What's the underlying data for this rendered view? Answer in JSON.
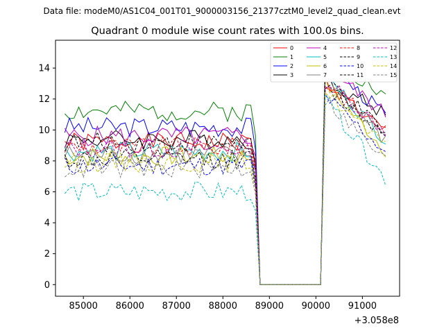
{
  "header": {
    "file_label": "Data file: modeM0/AS1C04_001T01_9000003156_21377cztM0_level2_quad_clean.evt"
  },
  "chart_data": {
    "type": "line",
    "title": "Quadrant 0 module wise count rates with 100.0s bins.",
    "xlabel": "",
    "ylabel": "",
    "x_offset_label": "+3.058e8",
    "xlim": [
      84400,
      91800
    ],
    "ylim": [
      -0.75,
      15.8
    ],
    "x_ticks": [
      85000,
      86000,
      87000,
      88000,
      89000,
      90000,
      91000
    ],
    "x_tick_labels": [
      "85000",
      "86000",
      "87000",
      "88000",
      "89000",
      "90000",
      "91000"
    ],
    "y_ticks": [
      0,
      2,
      4,
      6,
      8,
      10,
      12,
      14
    ],
    "y_tick_labels": [
      "0",
      "2",
      "4",
      "6",
      "8",
      "10",
      "12",
      "14"
    ],
    "grid": false,
    "legend_position": "top-right",
    "x_start": 84600,
    "x_step": 100,
    "n_points": 70,
    "gap_start_index": 42,
    "gap_end_index": 55,
    "series": [
      {
        "name": "0",
        "color": "#ff0000",
        "dash": "solid",
        "pre_mean": 9.2,
        "post_peak": 13.2,
        "post_end": 9.8,
        "seed": 1
      },
      {
        "name": "1",
        "color": "#008000",
        "dash": "solid",
        "pre_mean": 11.2,
        "post_peak": 15.0,
        "post_end": 12.1,
        "seed": 2
      },
      {
        "name": "2",
        "color": "#0000ff",
        "dash": "solid",
        "pre_mean": 10.2,
        "post_peak": 14.3,
        "post_end": 11.0,
        "seed": 3
      },
      {
        "name": "3",
        "color": "#000000",
        "dash": "solid",
        "pre_mean": 9.4,
        "post_peak": 13.3,
        "post_end": 11.0,
        "seed": 4
      },
      {
        "name": "4",
        "color": "#bf00bf",
        "dash": "solid",
        "pre_mean": 9.6,
        "post_peak": 14.1,
        "post_end": 11.0,
        "seed": 5
      },
      {
        "name": "5",
        "color": "#00bfbf",
        "dash": "solid",
        "pre_mean": 8.6,
        "post_peak": 13.5,
        "post_end": 9.4,
        "seed": 6
      },
      {
        "name": "6",
        "color": "#bfbf00",
        "dash": "solid",
        "pre_mean": 8.3,
        "post_peak": 13.0,
        "post_end": 8.7,
        "seed": 7
      },
      {
        "name": "7",
        "color": "#808080",
        "dash": "solid",
        "pre_mean": 8.4,
        "post_peak": 13.6,
        "post_end": 9.2,
        "seed": 8
      },
      {
        "name": "8",
        "color": "#ff0000",
        "dash": "dashed",
        "pre_mean": 8.9,
        "post_peak": 13.0,
        "post_end": 10.0,
        "seed": 9
      },
      {
        "name": "9",
        "color": "#000000",
        "dash": "dashed",
        "pre_mean": 9.2,
        "post_peak": 13.4,
        "post_end": 9.7,
        "seed": 10
      },
      {
        "name": "10",
        "color": "#0000ff",
        "dash": "dashed",
        "pre_mean": 7.7,
        "post_peak": 12.2,
        "post_end": 8.6,
        "seed": 11
      },
      {
        "name": "11",
        "color": "#000000",
        "dash": "dashed",
        "pre_mean": 8.1,
        "post_peak": 12.8,
        "post_end": 9.7,
        "seed": 12
      },
      {
        "name": "12",
        "color": "#bf00bf",
        "dash": "dashed",
        "pre_mean": 8.8,
        "post_peak": 13.2,
        "post_end": 9.9,
        "seed": 13
      },
      {
        "name": "13",
        "color": "#00bfbf",
        "dash": "dashed",
        "pre_mean": 6.0,
        "post_peak": 12.0,
        "post_end": 6.8,
        "seed": 14
      },
      {
        "name": "14",
        "color": "#bfbf00",
        "dash": "dashed",
        "pre_mean": 7.9,
        "post_peak": 12.5,
        "post_end": 8.8,
        "seed": 15
      },
      {
        "name": "15",
        "color": "#808080",
        "dash": "dashed",
        "pre_mean": 7.5,
        "post_peak": 12.0,
        "post_end": 8.0,
        "seed": 16
      }
    ]
  }
}
